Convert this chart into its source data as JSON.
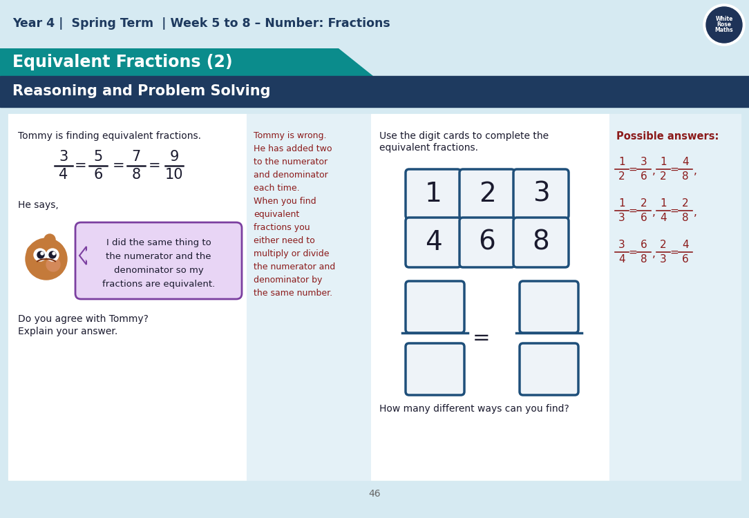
{
  "title_header": "Year 4 |  Spring Term  | Week 5 to 8 – Number: Fractions",
  "title_main": "Equivalent Fractions (2)",
  "title_sub": "Reasoning and Problem Solving",
  "bg_light": "#d6eaf2",
  "bg_teal": "#0b8c8c",
  "bg_navy": "#1e3a5f",
  "bg_white": "#ffffff",
  "bg_answer": "#e4f1f7",
  "text_dark": "#1a1a2e",
  "text_red": "#8b1a1a",
  "text_navy": "#1e3a5f",
  "page_num": "46",
  "panel_border": "#b0c4d4",
  "card_fill": "#eef3f8",
  "card_border": "#1e4f7a",
  "speech_fill": "#e8d5f5",
  "speech_border": "#7b3fa0"
}
